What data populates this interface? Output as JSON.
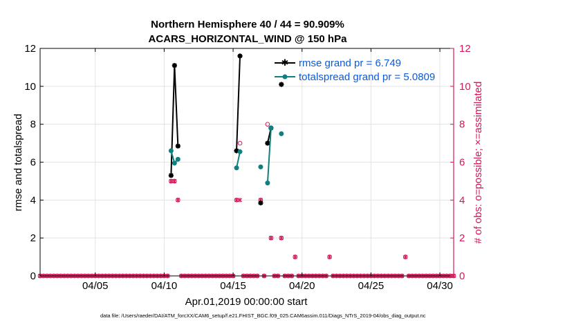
{
  "chart_data": {
    "type": "line",
    "title_line1": "Northern Hemisphere 40 / 44 = 90.909%",
    "title_line2": "ACARS_HORIZONTAL_WIND @ 150 hPa",
    "xlabel": "Apr.01,2019 00:00:00 start",
    "ylabel_left": "rmse and totalspread",
    "ylabel_right": "# of obs: o=possible; ×=assimilated",
    "footnote": "data file: /Users/raeder/DAI/ATM_forcXX/CAM6_setup/f.e21.FHIST_BGC.f09_025.CAM6assim.011/Diags_NTrS_2019-04/obs_diag_output.nc",
    "xlim": [
      1.0,
      31.0
    ],
    "ylim_left": [
      0,
      12
    ],
    "ylim_right": [
      0,
      12
    ],
    "x_ticks": [
      5,
      10,
      15,
      20,
      25,
      30
    ],
    "x_tick_labels": [
      "04/05",
      "04/10",
      "04/15",
      "04/20",
      "04/25",
      "04/30"
    ],
    "y_ticks_left": [
      0,
      2,
      4,
      6,
      8,
      10,
      12
    ],
    "y_ticks_right": [
      0,
      2,
      4,
      6,
      8,
      10,
      12
    ],
    "legend_position": "top-right",
    "colors": {
      "rmse": "#000000",
      "spread": "#0f7f80",
      "obs": "#d6175a",
      "legend_text": "#0a5adc",
      "grid": "#e3e3e3"
    },
    "series": [
      {
        "name": "rmse",
        "legend": "rmse grand pr = 6.749",
        "segments": [
          [
            [
              10.5,
              5.3
            ],
            [
              10.75,
              11.1
            ],
            [
              11.0,
              6.85
            ]
          ],
          [
            [
              15.25,
              6.6
            ],
            [
              15.5,
              11.6
            ]
          ],
          [
            [
              17.0,
              3.85
            ]
          ],
          [
            [
              17.5,
              7.0
            ],
            [
              17.75,
              7.8
            ]
          ],
          [
            [
              18.5,
              10.1
            ]
          ]
        ]
      },
      {
        "name": "totalspread",
        "legend": "totalspread grand pr = 5.0809",
        "segments": [
          [
            [
              10.5,
              6.6
            ],
            [
              10.75,
              5.95
            ],
            [
              11.0,
              6.15
            ]
          ],
          [
            [
              15.25,
              5.7
            ],
            [
              15.5,
              6.55
            ]
          ],
          [
            [
              17.0,
              5.75
            ]
          ],
          [
            [
              17.5,
              4.9
            ],
            [
              17.75,
              7.8
            ]
          ],
          [
            [
              18.5,
              7.5
            ]
          ]
        ]
      }
    ],
    "obs_possible": {
      "nonzero": [
        [
          10.5,
          5
        ],
        [
          10.75,
          5
        ],
        [
          11.0,
          4
        ],
        [
          15.25,
          4
        ],
        [
          15.5,
          7
        ],
        [
          17.0,
          4
        ],
        [
          17.5,
          8
        ],
        [
          17.75,
          2
        ],
        [
          18.5,
          2
        ],
        [
          19.5,
          1
        ],
        [
          22.0,
          1
        ],
        [
          27.5,
          1
        ]
      ],
      "zero_start": 1.0,
      "zero_end": 31.0,
      "step": 0.25
    },
    "obs_assimilated": {
      "nonzero": [
        [
          10.5,
          5
        ],
        [
          10.75,
          5
        ],
        [
          11.0,
          4
        ],
        [
          15.25,
          4
        ],
        [
          15.5,
          4
        ],
        [
          17.0,
          4
        ],
        [
          17.5,
          7
        ],
        [
          17.75,
          2
        ],
        [
          18.5,
          2
        ],
        [
          19.5,
          1
        ],
        [
          22.0,
          1
        ],
        [
          27.5,
          1
        ]
      ]
    }
  }
}
